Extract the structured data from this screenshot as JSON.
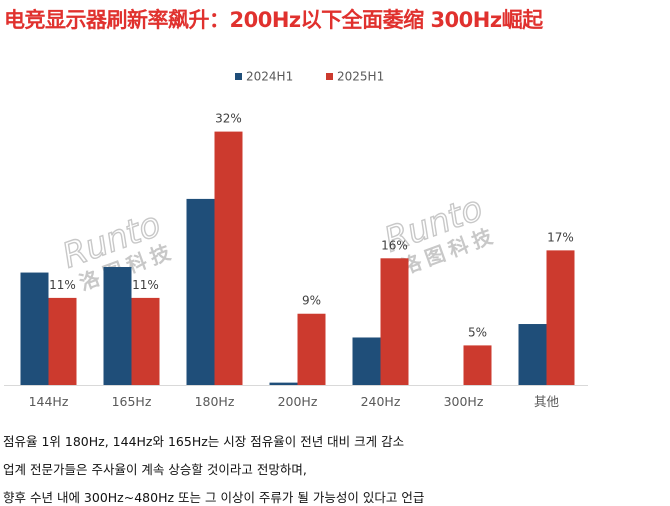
{
  "title": "电竞显示器刷新率飙升：200Hz以下全面萎缩 300Hz崛起",
  "watermark": {
    "text_top": "Runto",
    "text_bottom": "洛图科技",
    "color": "#c8c8c8"
  },
  "captions": [
    "점유율 1위 180Hz, 144Hz와 165Hz는 시장 점유율이 전년 대비 크게 감소",
    "업계 전문가들은 주사율이 계속 상승할 것이라고 전망하며,",
    "향후 수년 내에 300Hz~480Hz 또는 그 이상이 주류가 될 가능성이 있다고 언급"
  ],
  "chart_data": {
    "type": "bar",
    "categories": [
      "144Hz",
      "165Hz",
      "180Hz",
      "200Hz",
      "240Hz",
      "300Hz",
      "其他"
    ],
    "series": [
      {
        "name": "2024H1",
        "color": "#1f4e79",
        "values": [
          14.2,
          14.9,
          23.5,
          0.3,
          6.0,
          0,
          7.7
        ],
        "labels": [
          "",
          "",
          "",
          "",
          "",
          "",
          ""
        ]
      },
      {
        "name": "2025H1",
        "color": "#cc3a2e",
        "values": [
          11,
          11,
          32,
          9,
          16,
          5,
          17
        ],
        "labels": [
          "11%",
          "11%",
          "32%",
          "9%",
          "16%",
          "5%",
          "17%"
        ]
      }
    ],
    "ylim": [
      0,
      37
    ],
    "legend": "top-center",
    "grid": false
  }
}
